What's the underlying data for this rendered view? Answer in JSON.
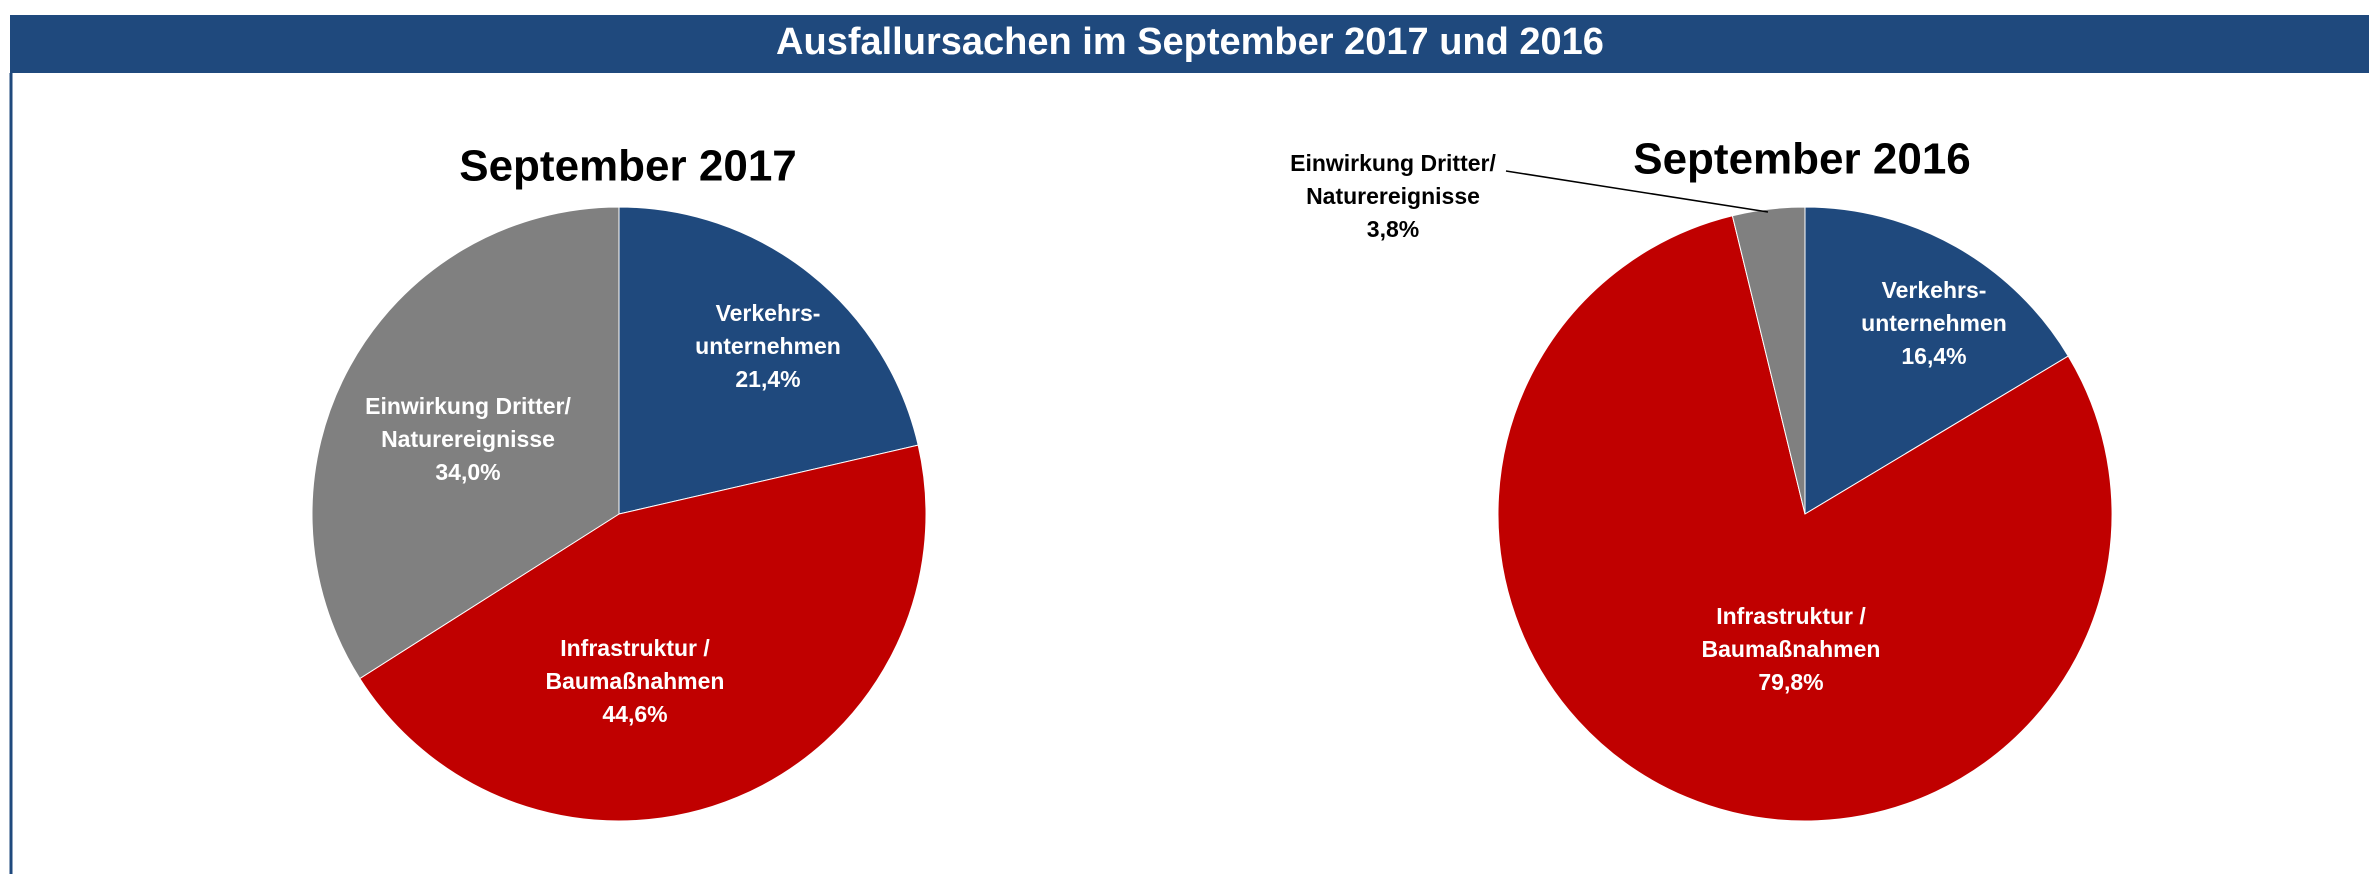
{
  "header": {
    "title": "Ausfallursachen im September 2017 und 2016"
  },
  "chart_data": [
    {
      "type": "pie",
      "title": "September 2017",
      "categories": [
        [
          "Verkehrs-",
          "unternehmen"
        ],
        [
          "Infrastruktur /",
          "Baumaßnahmen"
        ],
        [
          "Einwirkung Dritter/",
          "Naturereignisse"
        ]
      ],
      "values": [
        21.4,
        44.6,
        34.0
      ],
      "value_labels": [
        "21,4%",
        "44,6%",
        "34,0%"
      ],
      "colors": [
        "#1f497d",
        "#c00000",
        "#808080"
      ]
    },
    {
      "type": "pie",
      "title": "September 2016",
      "categories": [
        [
          "Verkehrs-",
          "unternehmen"
        ],
        [
          "Infrastruktur /",
          "Baumaßnahmen"
        ],
        [
          "Einwirkung Dritter/",
          "Naturereignisse"
        ]
      ],
      "values": [
        16.4,
        79.8,
        3.8
      ],
      "value_labels": [
        "16,4%",
        "79,8%",
        "3,8%"
      ],
      "colors": [
        "#1f497d",
        "#c00000",
        "#808080"
      ]
    }
  ]
}
